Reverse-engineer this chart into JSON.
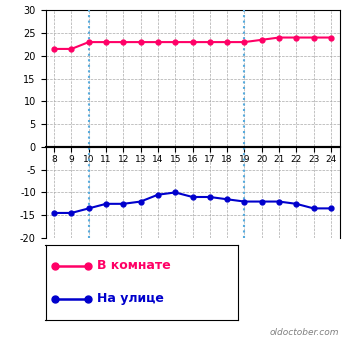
{
  "x": [
    8,
    9,
    10,
    11,
    12,
    13,
    14,
    15,
    16,
    17,
    18,
    19,
    20,
    21,
    22,
    23,
    24
  ],
  "indoor": [
    21.5,
    21.5,
    23.0,
    23.0,
    23.0,
    23.0,
    23.0,
    23.0,
    23.0,
    23.0,
    23.0,
    23.0,
    23.5,
    24.0,
    24.0,
    24.0,
    24.0
  ],
  "outdoor": [
    -14.5,
    -14.5,
    -13.5,
    -12.5,
    -12.5,
    -12.0,
    -10.5,
    -10.0,
    -11.0,
    -11.0,
    -11.5,
    -12.0,
    -12.0,
    -12.0,
    -12.5,
    -13.5,
    -13.5
  ],
  "indoor_color": "#ff0066",
  "outdoor_color": "#0000cc",
  "vline_color": "#55aadd",
  "grid_color": "#aaaaaa",
  "zero_line_color": "#000000",
  "background_color": "#ffffff",
  "border_color": "#000000",
  "ylim": [
    -20,
    30
  ],
  "yticks": [
    -20,
    -15,
    -10,
    -5,
    0,
    5,
    10,
    15,
    20,
    25,
    30
  ],
  "vlines": [
    10,
    19
  ],
  "legend_indoor": "В комнате",
  "legend_outdoor": "На улице",
  "watermark": "oldoctober.com",
  "marker_size": 3.5,
  "line_width": 1.5
}
